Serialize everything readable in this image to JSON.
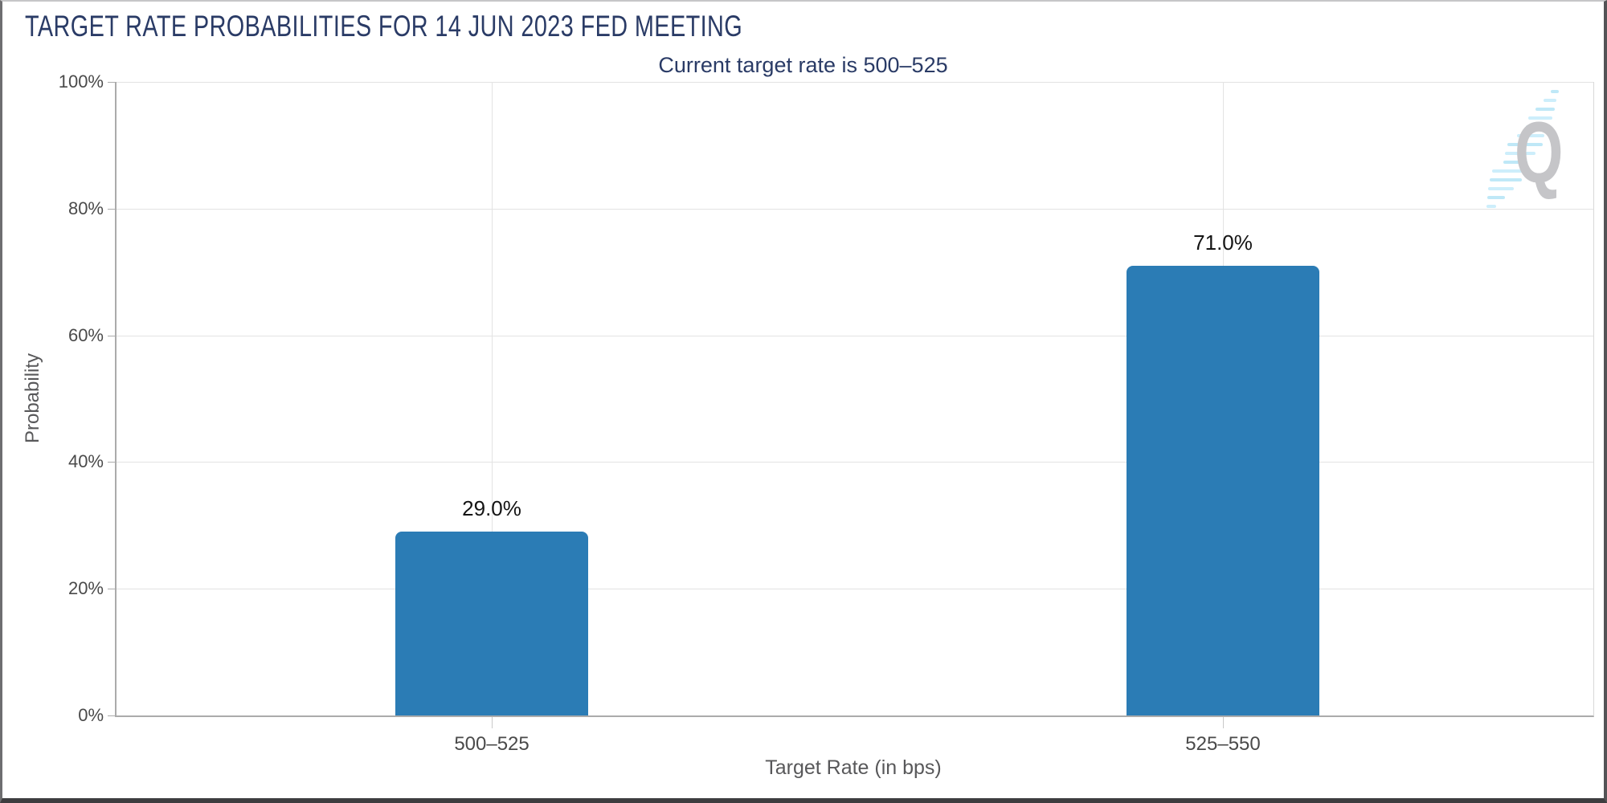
{
  "header": {
    "title": "TARGET RATE PROBABILITIES FOR 14 JUN 2023 FED MEETING",
    "subtitle": "Current target rate is 500–525"
  },
  "colors": {
    "title_navy": "#2a3b66",
    "bar_blue": "#2b7cb5",
    "grid_light": "#e3e3e3",
    "axis_gray": "#ababab",
    "tick_label_gray": "#4a4a4a",
    "axis_title_gray": "#58585a",
    "value_label_black": "#141414",
    "watermark_gray": "#c5c5c8",
    "watermark_cyan": "#bfe8f7"
  },
  "watermark": {
    "letter": "Q"
  },
  "chart_data": {
    "type": "bar",
    "title": "TARGET RATE PROBABILITIES FOR 14 JUN 2023 FED MEETING",
    "subtitle": "Current target rate is 500–525",
    "categories": [
      "500–525",
      "525–550"
    ],
    "values": [
      29.0,
      71.0
    ],
    "value_labels": [
      "29.0%",
      "71.0%"
    ],
    "xlabel": "Target Rate (in bps)",
    "ylabel": "Probability",
    "ylim": [
      0,
      100
    ],
    "ytick_values": [
      0,
      20,
      40,
      60,
      80,
      100
    ],
    "ytick_labels": [
      "0%",
      "20%",
      "40%",
      "60%",
      "80%",
      "100%"
    ],
    "grid": true,
    "legend": false,
    "bar_color": "#2b7cb5"
  }
}
